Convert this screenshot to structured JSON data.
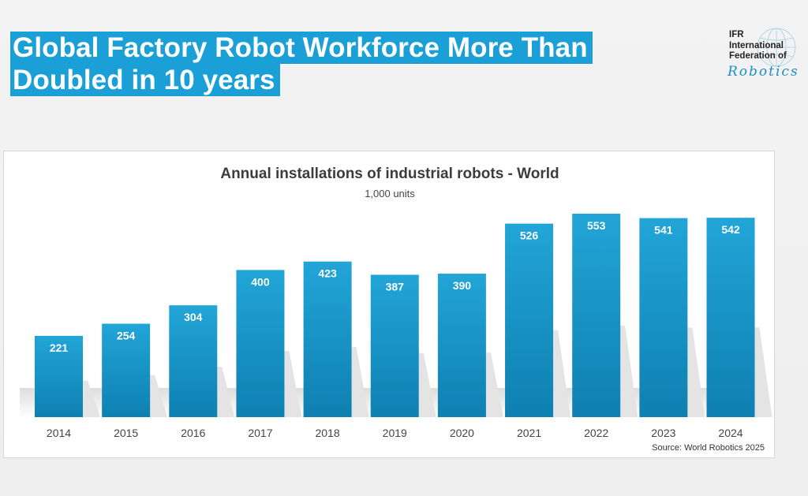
{
  "headline": {
    "line1": "Global Factory Robot Workforce More Than",
    "line2": "Doubled in 10 years"
  },
  "logo": {
    "line1": "IFR",
    "line2": "International",
    "line3": "Federation of",
    "wordmark": "Robotics"
  },
  "colors": {
    "accent": "#1aa0d6",
    "bar_top": "#23a6d8",
    "bar_bottom": "#0f7fb0"
  },
  "chart_data": {
    "type": "bar",
    "title": "Annual installations of industrial robots - World",
    "subtitle": "1,000 units",
    "categories": [
      "2014",
      "2015",
      "2016",
      "2017",
      "2018",
      "2019",
      "2020",
      "2021",
      "2022",
      "2023",
      "2024"
    ],
    "values": [
      221,
      254,
      304,
      400,
      423,
      387,
      390,
      526,
      553,
      541,
      542
    ],
    "data_labels": [
      "221",
      "254",
      "304",
      "400",
      "423",
      "387",
      "390",
      "526",
      "553",
      "541",
      "542"
    ],
    "ylim": [
      0,
      553
    ],
    "grid": false,
    "legend": "none",
    "source": "Source: World Robotics 2025"
  }
}
